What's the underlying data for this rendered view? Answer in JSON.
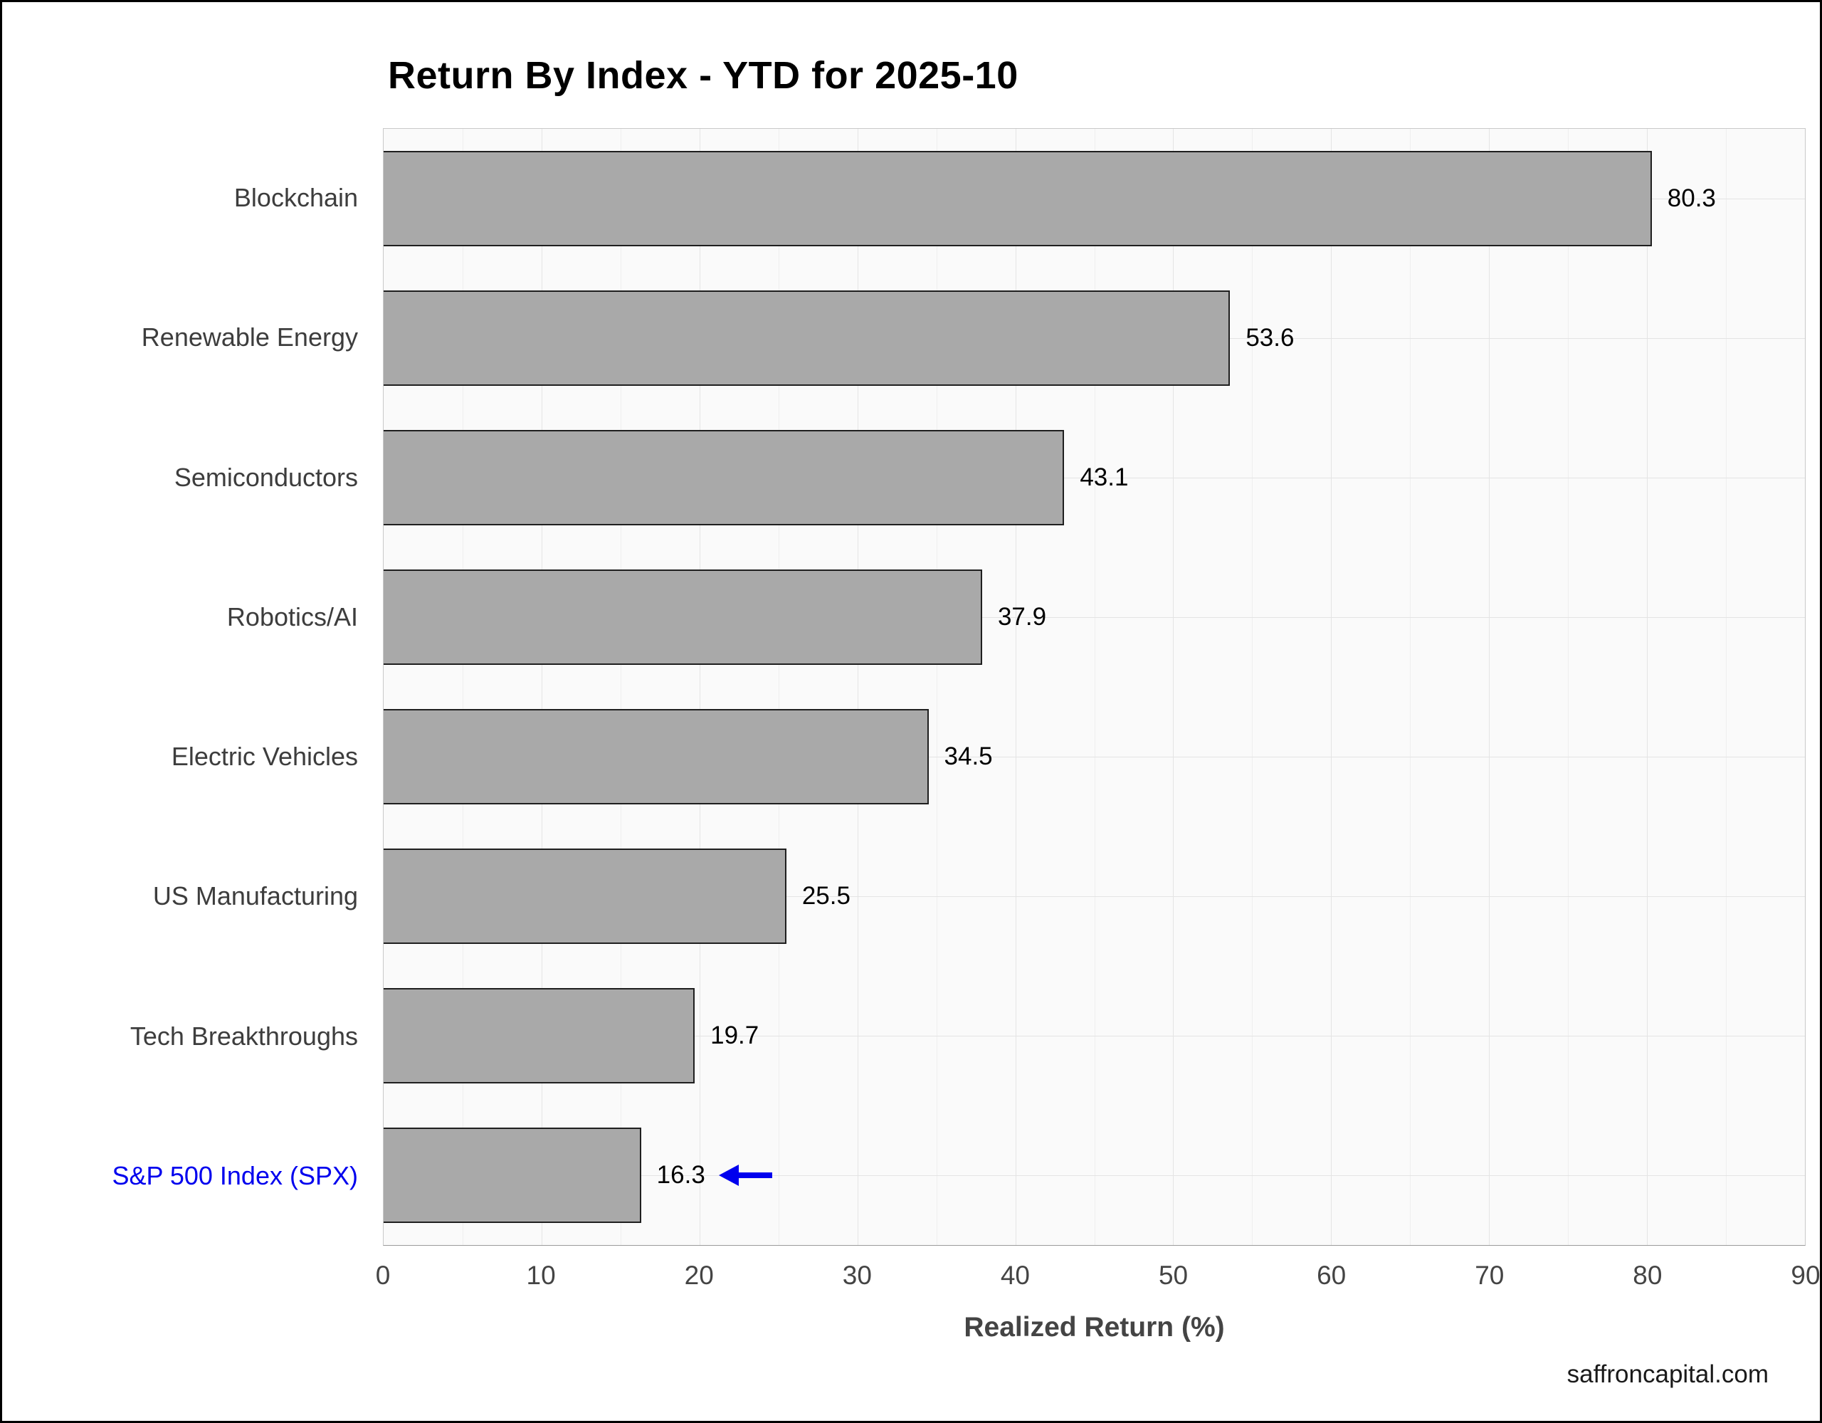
{
  "chart_data": {
    "type": "bar",
    "orientation": "horizontal",
    "title": "Return By Index - YTD for 2025-10",
    "categories": [
      "Blockchain",
      "Renewable Energy",
      "Semiconductors",
      "Robotics/AI",
      "Electric Vehicles",
      "US Manufacturing",
      "Tech Breakthroughs",
      "S&P 500 Index (SPX)"
    ],
    "values": [
      80.3,
      53.6,
      43.1,
      37.9,
      34.5,
      25.5,
      19.7,
      16.3
    ],
    "xlabel": "Realized Return (%)",
    "xlim": [
      0,
      90
    ],
    "xticks": [
      0,
      10,
      20,
      30,
      40,
      50,
      60,
      70,
      80,
      90
    ],
    "minor_grid_step": 5,
    "grid": true,
    "legend": "none",
    "bar_color": "#a9a9a9",
    "bar_border_color": "#1f1f1f",
    "plot_bg_color": "#fafafa",
    "highlight": {
      "category": "S&P 500 Index (SPX)",
      "label_color": "#0000ee",
      "annotation": "left-arrow",
      "arrow_color": "#0000ee"
    }
  },
  "footer": {
    "watermark": "saffroncapital.com"
  }
}
